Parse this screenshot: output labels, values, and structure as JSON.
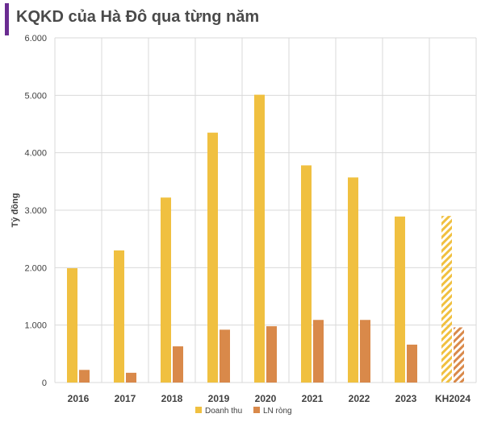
{
  "title": "KQKD của Hà Đô qua từng năm",
  "colors": {
    "accent_bar": "#6a2c91",
    "revenue": "#f0c040",
    "profit": "#d9894a",
    "grid": "#d9d9d9",
    "text": "#404040"
  },
  "chart_data": {
    "type": "bar",
    "title": "KQKD của Hà Đô qua từng năm",
    "xlabel": "",
    "ylabel": "Tỷ đồng",
    "ylim": [
      0,
      6000
    ],
    "y_ticks": [
      "0",
      "1.000",
      "2.000",
      "3.000",
      "4.000",
      "5.000",
      "6.000"
    ],
    "y_tick_values": [
      0,
      1000,
      2000,
      3000,
      4000,
      5000,
      6000
    ],
    "grid": true,
    "legend_position": "bottom",
    "categories": [
      "2016",
      "2017",
      "2018",
      "2019",
      "2020",
      "2021",
      "2022",
      "2023",
      "KH2024"
    ],
    "hatched_categories": [
      "KH2024"
    ],
    "series": [
      {
        "name": "Doanh thu",
        "values": [
          1990,
          2300,
          3220,
          4350,
          5010,
          3780,
          3570,
          2890,
          2900
        ]
      },
      {
        "name": "LN ròng",
        "values": [
          220,
          170,
          630,
          920,
          980,
          1090,
          1090,
          660,
          960
        ]
      }
    ]
  }
}
